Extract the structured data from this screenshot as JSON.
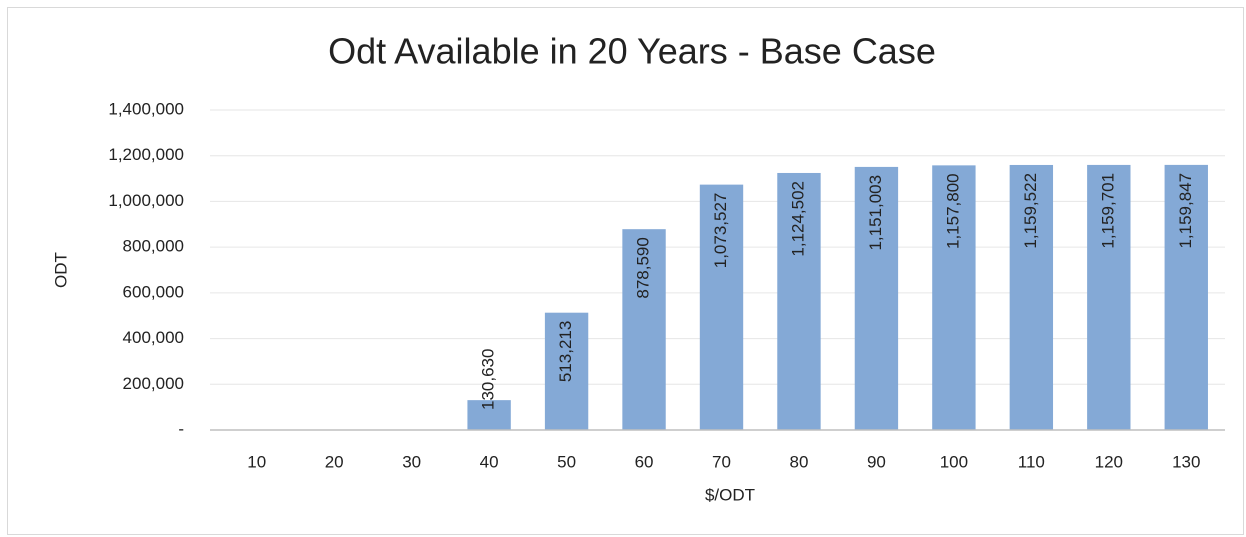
{
  "chart_data": {
    "type": "bar",
    "title": "Odt Available in 20 Years - Base Case",
    "x_label": "$/ODT",
    "y_label": "ODT",
    "categories": [
      "10",
      "20",
      "30",
      "40",
      "50",
      "60",
      "70",
      "80",
      "90",
      "100",
      "110",
      "120",
      "130"
    ],
    "values": [
      0,
      0,
      0,
      130630,
      513213,
      878590,
      1073527,
      1124502,
      1151003,
      1157800,
      1159522,
      1159701,
      1159847
    ],
    "value_labels": [
      null,
      null,
      null,
      "130,630",
      "513,213",
      "878,590",
      "1,073,527",
      "1,124,502",
      "1,151,003",
      "1,157,800",
      "1,159,522",
      "1,159,701",
      "1,159,847"
    ],
    "color": "#84a9d6",
    "ylim": [
      0,
      1400000
    ],
    "yticks": [
      {
        "value": 0,
        "label": "-"
      },
      {
        "value": 200000,
        "label": "200,000"
      },
      {
        "value": 400000,
        "label": "400,000"
      },
      {
        "value": 600000,
        "label": "600,000"
      },
      {
        "value": 800000,
        "label": "800,000"
      },
      {
        "value": 1000000,
        "label": "1,000,000"
      },
      {
        "value": 1200000,
        "label": "1,200,000"
      },
      {
        "value": 1400000,
        "label": "1,400,000"
      }
    ],
    "grid": true
  }
}
